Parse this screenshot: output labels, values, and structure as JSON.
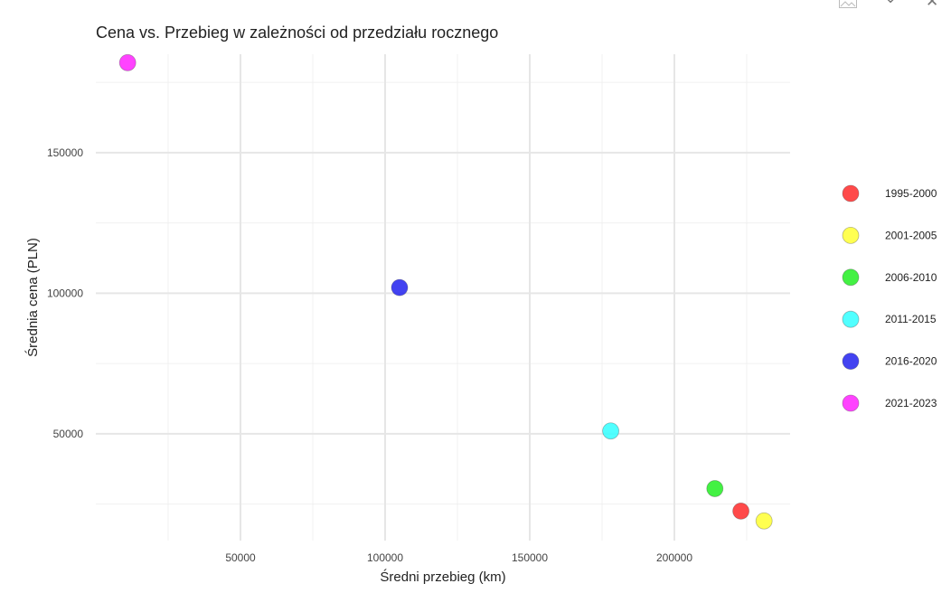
{
  "toolbar": {
    "icons": [
      "image-icon",
      "chevron-down-icon",
      "close-icon"
    ],
    "close_glyph": "✕",
    "chevron_glyph": "⌄"
  },
  "chart_data": {
    "type": "scatter",
    "title": "Cena vs. Przebieg w zależności od przedziału rocznego",
    "xlabel": "Średni przebieg (km)",
    "ylabel": "Średnia cena (PLN)",
    "xlim": [
      0,
      240000
    ],
    "ylim": [
      12000,
      185000
    ],
    "x_ticks": [
      50000,
      100000,
      150000,
      200000
    ],
    "y_ticks": [
      50000,
      100000,
      150000
    ],
    "grid": true,
    "legend_position": "right",
    "series": [
      {
        "name": "1995-2000",
        "color": "#ff2a2a",
        "x": [
          223000
        ],
        "y": [
          22500
        ]
      },
      {
        "name": "2001-2005",
        "color": "#ffff33",
        "x": [
          231000
        ],
        "y": [
          19000
        ]
      },
      {
        "name": "2006-2010",
        "color": "#22ee22",
        "x": [
          214000
        ],
        "y": [
          30500
        ]
      },
      {
        "name": "2011-2015",
        "color": "#33ffff",
        "x": [
          178000
        ],
        "y": [
          51000
        ]
      },
      {
        "name": "2016-2020",
        "color": "#2222ee",
        "x": [
          105000
        ],
        "y": [
          102000
        ]
      },
      {
        "name": "2021-2023",
        "color": "#ff22ff",
        "x": [
          11000
        ],
        "y": [
          182000
        ]
      }
    ]
  }
}
